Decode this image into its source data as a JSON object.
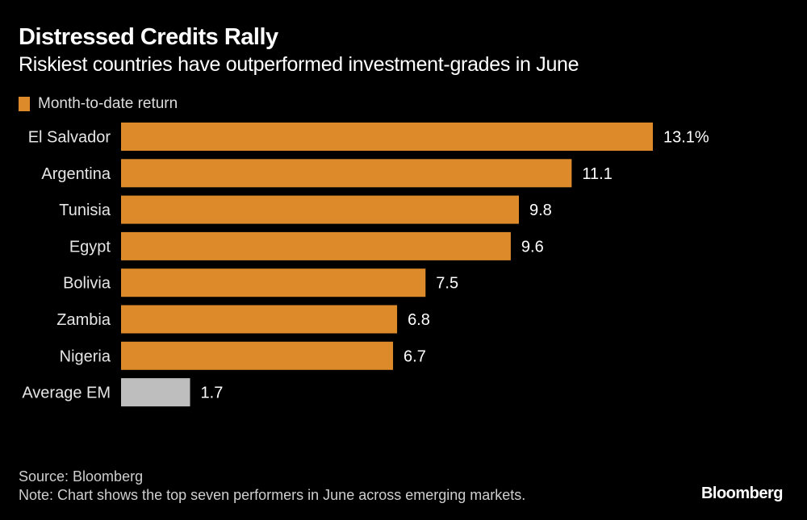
{
  "chart_data": {
    "type": "bar",
    "orientation": "horizontal",
    "title": "Distressed Credits Rally",
    "subtitle": "Riskiest countries have outperformed investment-grades in June",
    "legend": [
      {
        "name": "Month-to-date return",
        "color": "#DC8A2A"
      }
    ],
    "legend_position": "top-left",
    "categories": [
      "El Salvador",
      "Argentina",
      "Tunisia",
      "Egypt",
      "Bolivia",
      "Zambia",
      "Nigeria",
      "Average EM"
    ],
    "values": [
      13.1,
      11.1,
      9.8,
      9.6,
      7.5,
      6.8,
      6.7,
      1.7
    ],
    "value_labels": [
      "13.1%",
      "11.1",
      "9.8",
      "9.6",
      "7.5",
      "6.8",
      "6.7",
      "1.7"
    ],
    "bar_colors": [
      "#DC8A2A",
      "#DC8A2A",
      "#DC8A2A",
      "#DC8A2A",
      "#DC8A2A",
      "#DC8A2A",
      "#DC8A2A",
      "#BEBEBE"
    ],
    "xlabel": "",
    "ylabel": "",
    "xlim": [
      0,
      13.1
    ],
    "grid": false,
    "unit": "%"
  },
  "footer": {
    "source": "Source: Bloomberg",
    "note": "Note: Chart shows the top seven performers in June across emerging markets.",
    "logo": "Bloomberg"
  }
}
